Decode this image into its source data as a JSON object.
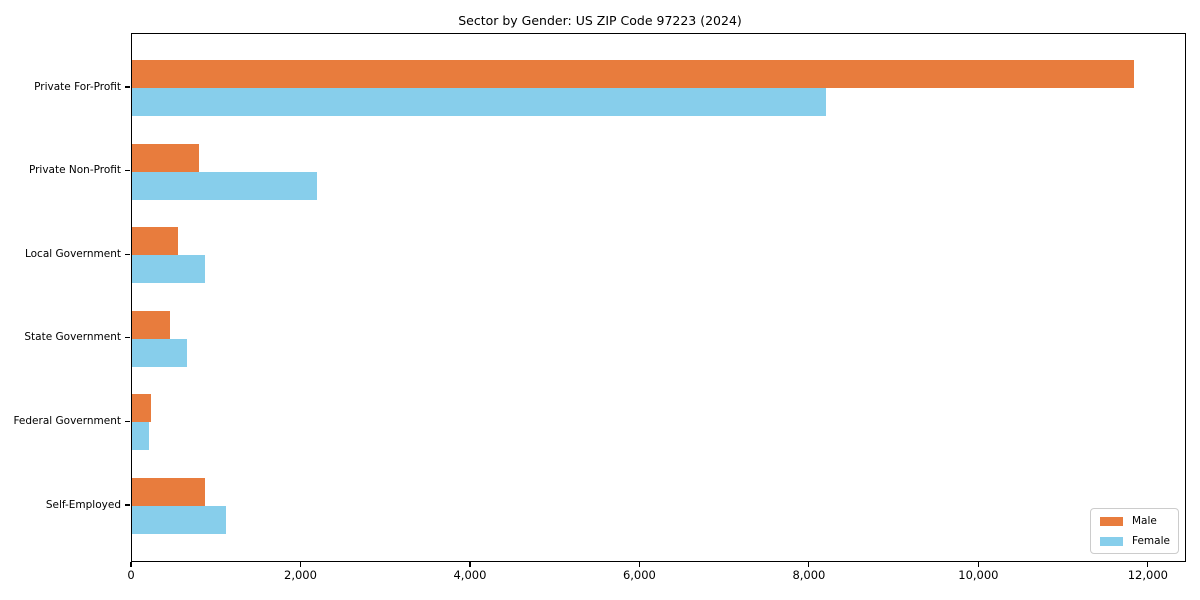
{
  "chart_data": {
    "type": "bar",
    "orientation": "horizontal",
    "title": "Sector by Gender: US ZIP Code 97223 (2024)",
    "categories": [
      "Private For-Profit",
      "Private Non-Profit",
      "Local Government",
      "State Government",
      "Federal Government",
      "Self-Employed"
    ],
    "series": [
      {
        "name": "Male",
        "color": "#e87c3d",
        "values": [
          11850,
          790,
          540,
          450,
          230,
          860
        ]
      },
      {
        "name": "Female",
        "color": "#87ceeb",
        "values": [
          8200,
          2190,
          860,
          650,
          205,
          1110
        ]
      }
    ],
    "xlabel": "",
    "ylabel": "",
    "xlim": [
      0,
      12450
    ],
    "xticks": [
      0,
      2000,
      4000,
      6000,
      8000,
      10000,
      12000
    ],
    "xtick_labels": [
      "0",
      "2,000",
      "4,000",
      "6,000",
      "8,000",
      "10,000",
      "12,000"
    ],
    "grid": false,
    "legend_position": "lower right",
    "background_color": "#ffffff",
    "axis_color": "#000000"
  }
}
